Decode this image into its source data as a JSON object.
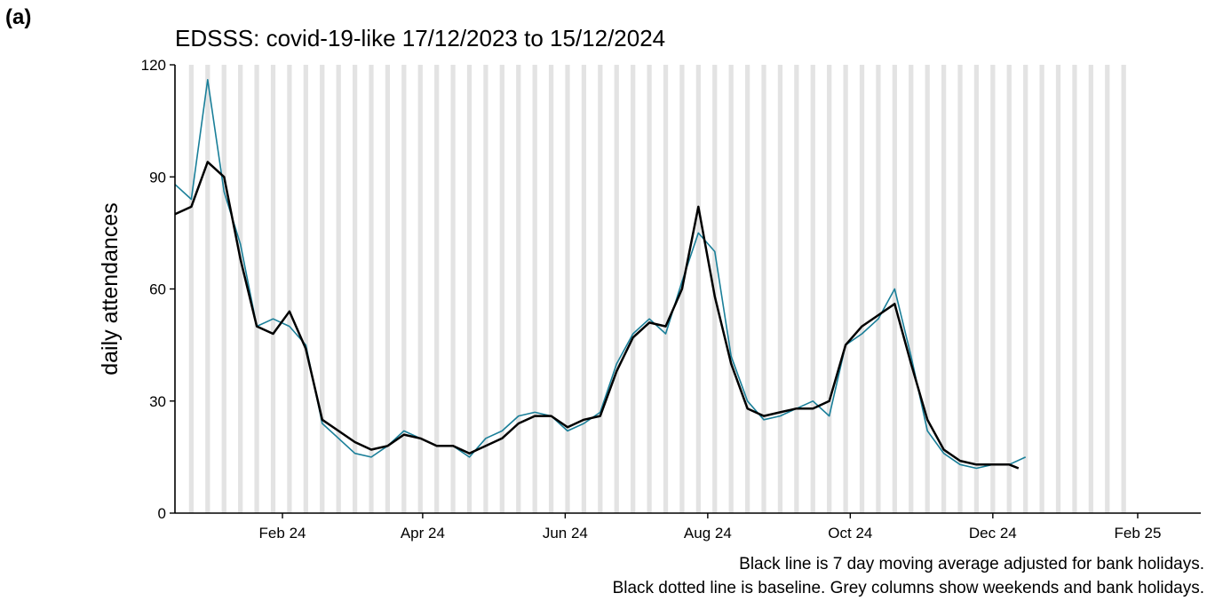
{
  "panel_label": "(a)",
  "caption": {
    "line1": "Black line is 7 day moving average adjusted for bank holidays.",
    "line2": "Black dotted line is baseline. Grey columns show weekends and bank holidays."
  },
  "colors": {
    "daily": "#1a7f99",
    "average": "#000000",
    "shading": "#e3e3e3",
    "axis": "#000000"
  },
  "chart_data": {
    "type": "line",
    "title": "EDSSS: covid-19-like 17/12/2023 to 15/12/2024",
    "ylabel": "daily attendances",
    "xlabel": "",
    "ylim": [
      0,
      120
    ],
    "yticks": [
      0,
      30,
      60,
      90,
      120
    ],
    "xlim": [
      "2023-12-17",
      "2025-02-28"
    ],
    "xticks": [
      {
        "date": "2024-02-01",
        "label": "Feb 24"
      },
      {
        "date": "2024-04-01",
        "label": "Apr 24"
      },
      {
        "date": "2024-06-01",
        "label": "Jun 24"
      },
      {
        "date": "2024-08-01",
        "label": "Aug 24"
      },
      {
        "date": "2024-10-01",
        "label": "Oct 24"
      },
      {
        "date": "2024-12-01",
        "label": "Dec 24"
      },
      {
        "date": "2025-02-01",
        "label": "Feb 25"
      }
    ],
    "grid": false,
    "series": [
      {
        "role": "daily",
        "dates": [
          "2023-12-17",
          "2023-12-24",
          "2023-12-31",
          "2024-01-07",
          "2024-01-14",
          "2024-01-21",
          "2024-01-28",
          "2024-02-04",
          "2024-02-11",
          "2024-02-18",
          "2024-02-25",
          "2024-03-03",
          "2024-03-10",
          "2024-03-17",
          "2024-03-24",
          "2024-03-31",
          "2024-04-07",
          "2024-04-14",
          "2024-04-21",
          "2024-04-28",
          "2024-05-05",
          "2024-05-12",
          "2024-05-19",
          "2024-05-26",
          "2024-06-02",
          "2024-06-09",
          "2024-06-16",
          "2024-06-23",
          "2024-06-30",
          "2024-07-07",
          "2024-07-14",
          "2024-07-21",
          "2024-07-28",
          "2024-08-04",
          "2024-08-11",
          "2024-08-18",
          "2024-08-25",
          "2024-09-01",
          "2024-09-08",
          "2024-09-15",
          "2024-09-22",
          "2024-09-29",
          "2024-10-06",
          "2024-10-13",
          "2024-10-20",
          "2024-10-27",
          "2024-11-03",
          "2024-11-10",
          "2024-11-17",
          "2024-11-24",
          "2024-12-01",
          "2024-12-08",
          "2024-12-15"
        ],
        "values": [
          88,
          84,
          116,
          86,
          72,
          50,
          52,
          50,
          45,
          24,
          20,
          16,
          15,
          18,
          22,
          20,
          18,
          18,
          15,
          20,
          22,
          26,
          27,
          26,
          22,
          24,
          27,
          40,
          48,
          52,
          48,
          62,
          75,
          70,
          42,
          30,
          25,
          26,
          28,
          30,
          26,
          45,
          48,
          52,
          60,
          42,
          22,
          16,
          13,
          12,
          13,
          13,
          15
        ]
      },
      {
        "role": "average",
        "dates": [
          "2023-12-17",
          "2023-12-24",
          "2023-12-31",
          "2024-01-07",
          "2024-01-14",
          "2024-01-21",
          "2024-01-28",
          "2024-02-04",
          "2024-02-11",
          "2024-02-18",
          "2024-02-25",
          "2024-03-03",
          "2024-03-10",
          "2024-03-17",
          "2024-03-24",
          "2024-03-31",
          "2024-04-07",
          "2024-04-14",
          "2024-04-21",
          "2024-04-28",
          "2024-05-05",
          "2024-05-12",
          "2024-05-19",
          "2024-05-26",
          "2024-06-02",
          "2024-06-09",
          "2024-06-16",
          "2024-06-23",
          "2024-06-30",
          "2024-07-07",
          "2024-07-14",
          "2024-07-21",
          "2024-07-28",
          "2024-08-04",
          "2024-08-11",
          "2024-08-18",
          "2024-08-25",
          "2024-09-01",
          "2024-09-08",
          "2024-09-15",
          "2024-09-22",
          "2024-09-29",
          "2024-10-06",
          "2024-10-13",
          "2024-10-20",
          "2024-10-27",
          "2024-11-03",
          "2024-11-10",
          "2024-11-17",
          "2024-11-24",
          "2024-12-01",
          "2024-12-08",
          "2024-12-12"
        ],
        "values": [
          80,
          82,
          94,
          90,
          68,
          50,
          48,
          54,
          44,
          25,
          22,
          19,
          17,
          18,
          21,
          20,
          18,
          18,
          16,
          18,
          20,
          24,
          26,
          26,
          23,
          25,
          26,
          38,
          47,
          51,
          50,
          60,
          82,
          58,
          40,
          28,
          26,
          27,
          28,
          28,
          30,
          45,
          50,
          53,
          56,
          40,
          25,
          17,
          14,
          13,
          13,
          13,
          12
        ]
      }
    ]
  }
}
